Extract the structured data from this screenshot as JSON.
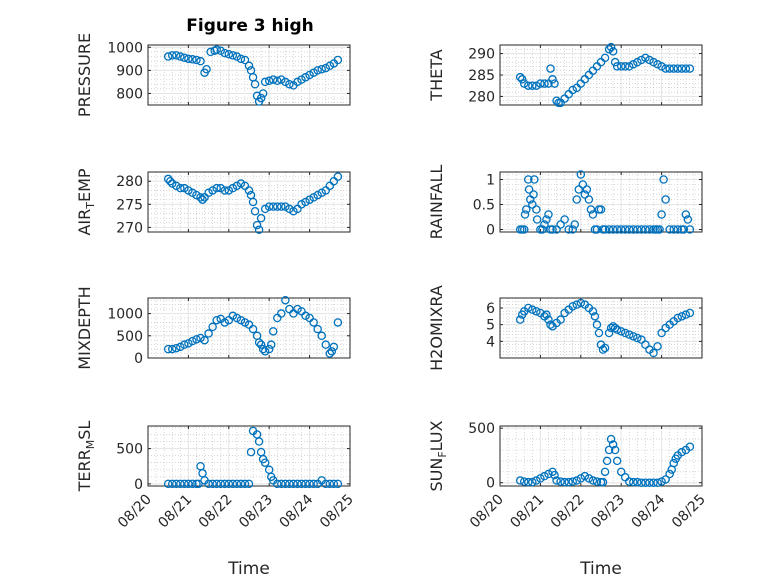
{
  "figure": {
    "title": "Figure 3 high",
    "marker_color": "#0072BD",
    "grid_color": "#e5e5e5",
    "minor_grid_color": "#bdbdbd"
  },
  "chart_data": [
    {
      "type": "scatter",
      "ylabel": "PRESSURE",
      "ylabel_parts": [],
      "x_date_ticks": [
        "08/20",
        "08/21",
        "08/22",
        "08/23",
        "08/24",
        "08/25"
      ],
      "xlim": [
        0,
        5
      ],
      "ylim": [
        750,
        1010
      ],
      "yticks": [
        800,
        900,
        1000
      ],
      "show_xticklabels": false,
      "x": [
        0.5,
        0.6,
        0.7,
        0.8,
        0.9,
        1.0,
        1.1,
        1.2,
        1.3,
        1.4,
        1.45,
        1.55,
        1.65,
        1.7,
        1.8,
        1.9,
        2.0,
        2.1,
        2.2,
        2.3,
        2.4,
        2.5,
        2.55,
        2.6,
        2.65,
        2.7,
        2.75,
        2.8,
        2.85,
        2.9,
        3.0,
        3.1,
        3.2,
        3.3,
        3.4,
        3.5,
        3.6,
        3.7,
        3.8,
        3.9,
        4.0,
        4.1,
        4.2,
        4.3,
        4.4,
        4.5,
        4.6,
        4.7
      ],
      "y": [
        960,
        965,
        965,
        960,
        955,
        950,
        948,
        945,
        940,
        890,
        905,
        980,
        985,
        990,
        985,
        975,
        970,
        965,
        960,
        950,
        945,
        920,
        900,
        870,
        840,
        790,
        765,
        780,
        800,
        850,
        855,
        860,
        855,
        860,
        850,
        840,
        835,
        850,
        860,
        870,
        880,
        890,
        900,
        905,
        910,
        920,
        930,
        945
      ]
    },
    {
      "type": "scatter",
      "ylabel": "THETA",
      "ylabel_parts": [],
      "x_date_ticks": [
        "08/20",
        "08/21",
        "08/22",
        "08/23",
        "08/24",
        "08/25"
      ],
      "xlim": [
        0,
        5
      ],
      "ylim": [
        278,
        292
      ],
      "yticks": [
        280,
        285,
        290
      ],
      "show_xticklabels": false,
      "x": [
        0.5,
        0.55,
        0.6,
        0.7,
        0.8,
        0.9,
        1.0,
        1.1,
        1.2,
        1.25,
        1.3,
        1.35,
        1.4,
        1.45,
        1.5,
        1.6,
        1.7,
        1.8,
        1.9,
        2.0,
        2.1,
        2.2,
        2.3,
        2.4,
        2.5,
        2.6,
        2.7,
        2.75,
        2.8,
        2.85,
        2.9,
        3.0,
        3.1,
        3.2,
        3.3,
        3.4,
        3.5,
        3.6,
        3.7,
        3.8,
        3.9,
        4.0,
        4.1,
        4.2,
        4.3,
        4.4,
        4.5,
        4.6,
        4.7
      ],
      "y": [
        284.5,
        284,
        283,
        282.5,
        282.5,
        282.5,
        283,
        283,
        283,
        286.5,
        284,
        283,
        279,
        278.5,
        278.5,
        279.5,
        280.5,
        281.5,
        282,
        283,
        284,
        285,
        286,
        287,
        288,
        289,
        291,
        291.5,
        290.5,
        288,
        287,
        287,
        287,
        287,
        287.5,
        288,
        288.5,
        289,
        288.5,
        288,
        287.5,
        287,
        286.5,
        286.5,
        286.5,
        286.5,
        286.5,
        286.5,
        286.5
      ]
    },
    {
      "type": "scatter",
      "ylabel": "",
      "ylabel_parts": [
        "AIR",
        "T",
        "EMP"
      ],
      "x_date_ticks": [
        "08/20",
        "08/21",
        "08/22",
        "08/23",
        "08/24",
        "08/25"
      ],
      "xlim": [
        0,
        5
      ],
      "ylim": [
        269,
        282
      ],
      "yticks": [
        270,
        275,
        280
      ],
      "show_xticklabels": false,
      "x": [
        0.5,
        0.55,
        0.6,
        0.7,
        0.8,
        0.9,
        1.0,
        1.1,
        1.2,
        1.3,
        1.35,
        1.4,
        1.5,
        1.6,
        1.7,
        1.8,
        1.9,
        2.0,
        2.1,
        2.2,
        2.3,
        2.4,
        2.5,
        2.55,
        2.6,
        2.65,
        2.7,
        2.75,
        2.8,
        2.9,
        3.0,
        3.1,
        3.2,
        3.3,
        3.4,
        3.5,
        3.6,
        3.7,
        3.8,
        3.9,
        4.0,
        4.1,
        4.2,
        4.3,
        4.4,
        4.5,
        4.6,
        4.7
      ],
      "y": [
        280.5,
        280,
        279.5,
        279,
        278.5,
        278.5,
        278,
        277.5,
        277,
        276.5,
        276,
        276.5,
        277.5,
        278,
        278.5,
        278.5,
        278,
        278,
        278.5,
        279,
        279.5,
        279,
        278,
        277,
        275.5,
        273.5,
        270.5,
        269.5,
        272,
        274,
        274.5,
        274.5,
        274.5,
        274.5,
        274.5,
        274,
        273.5,
        274,
        275,
        275.5,
        276,
        276.5,
        277,
        277.5,
        278,
        279,
        280,
        281
      ]
    },
    {
      "type": "scatter",
      "ylabel": "RAINFALL",
      "ylabel_parts": [],
      "x_date_ticks": [
        "08/20",
        "08/21",
        "08/22",
        "08/23",
        "08/24",
        "08/25"
      ],
      "xlim": [
        0,
        5
      ],
      "ylim": [
        -0.05,
        1.15
      ],
      "yticks": [
        0,
        0.5,
        1
      ],
      "ytick_labels": [
        "0",
        "0.5",
        "1"
      ],
      "show_xticklabels": false,
      "x": [
        0.5,
        0.55,
        0.6,
        0.62,
        0.65,
        0.7,
        0.72,
        0.75,
        0.8,
        0.83,
        0.85,
        0.9,
        0.92,
        1.0,
        1.05,
        1.1,
        1.15,
        1.2,
        1.25,
        1.3,
        1.4,
        1.5,
        1.6,
        1.7,
        1.8,
        1.85,
        1.9,
        1.95,
        2.0,
        2.05,
        2.1,
        2.15,
        2.2,
        2.25,
        2.3,
        2.35,
        2.4,
        2.45,
        2.5,
        2.55,
        2.6,
        2.7,
        2.8,
        2.9,
        3.0,
        3.1,
        3.2,
        3.3,
        3.4,
        3.5,
        3.6,
        3.7,
        3.8,
        3.85,
        3.9,
        3.95,
        4.0,
        4.05,
        4.1,
        4.2,
        4.3,
        4.4,
        4.5,
        4.55,
        4.6,
        4.65,
        4.7
      ],
      "y": [
        0,
        0,
        0,
        0.3,
        0.4,
        1.0,
        0.8,
        0.6,
        0.5,
        0.7,
        1.0,
        0.4,
        0.2,
        0,
        0,
        0.1,
        0.2,
        0.3,
        0,
        0,
        0,
        0.1,
        0.2,
        0,
        0,
        0.1,
        0.6,
        0.8,
        1.1,
        0.9,
        0.7,
        0.8,
        0.6,
        0.4,
        0.3,
        0,
        0,
        0.4,
        0.4,
        0,
        0,
        0,
        0,
        0,
        0,
        0,
        0,
        0,
        0,
        0,
        0,
        0,
        0,
        0,
        0,
        0,
        0.3,
        1.0,
        0.6,
        0,
        0,
        0,
        0,
        0,
        0.3,
        0.2,
        0
      ]
    },
    {
      "type": "scatter",
      "ylabel": "MIXDEPTH",
      "ylabel_parts": [],
      "x_date_ticks": [
        "08/20",
        "08/21",
        "08/22",
        "08/23",
        "08/24",
        "08/25"
      ],
      "xlim": [
        0,
        5
      ],
      "ylim": [
        0,
        1350
      ],
      "yticks": [
        0,
        500,
        1000
      ],
      "show_xticklabels": false,
      "x": [
        0.5,
        0.6,
        0.7,
        0.8,
        0.9,
        1.0,
        1.1,
        1.2,
        1.3,
        1.4,
        1.5,
        1.6,
        1.7,
        1.8,
        1.9,
        2.0,
        2.1,
        2.2,
        2.3,
        2.4,
        2.5,
        2.6,
        2.7,
        2.75,
        2.8,
        2.85,
        2.9,
        3.0,
        3.05,
        3.1,
        3.2,
        3.3,
        3.4,
        3.5,
        3.6,
        3.7,
        3.8,
        3.9,
        4.0,
        4.1,
        4.2,
        4.3,
        4.4,
        4.5,
        4.55,
        4.6,
        4.7
      ],
      "y": [
        200,
        200,
        220,
        250,
        300,
        330,
        380,
        420,
        450,
        400,
        550,
        700,
        850,
        880,
        800,
        850,
        950,
        900,
        850,
        800,
        750,
        650,
        500,
        350,
        300,
        200,
        150,
        200,
        300,
        600,
        900,
        1000,
        1300,
        1100,
        1000,
        1100,
        1050,
        950,
        900,
        800,
        650,
        500,
        300,
        100,
        150,
        250,
        800
      ]
    },
    {
      "type": "scatter",
      "ylabel": "H2OMIXRA",
      "ylabel_parts": [],
      "x_date_ticks": [
        "08/20",
        "08/21",
        "08/22",
        "08/23",
        "08/24",
        "08/25"
      ],
      "xlim": [
        0,
        5
      ],
      "ylim": [
        3.0,
        6.6
      ],
      "yticks": [
        4,
        5,
        6
      ],
      "show_xticklabels": false,
      "x": [
        0.5,
        0.55,
        0.6,
        0.7,
        0.8,
        0.9,
        1.0,
        1.1,
        1.15,
        1.2,
        1.25,
        1.3,
        1.4,
        1.5,
        1.6,
        1.7,
        1.8,
        1.9,
        2.0,
        2.1,
        2.2,
        2.3,
        2.35,
        2.4,
        2.45,
        2.5,
        2.55,
        2.6,
        2.7,
        2.75,
        2.8,
        2.85,
        2.9,
        3.0,
        3.1,
        3.2,
        3.3,
        3.4,
        3.5,
        3.6,
        3.7,
        3.8,
        3.9,
        4.0,
        4.1,
        4.2,
        4.3,
        4.4,
        4.5,
        4.6,
        4.7
      ],
      "y": [
        5.3,
        5.6,
        5.8,
        6.0,
        5.9,
        5.8,
        5.7,
        5.5,
        5.6,
        5.3,
        5.0,
        4.9,
        5.1,
        5.3,
        5.7,
        5.9,
        6.1,
        6.2,
        6.3,
        6.2,
        6.0,
        5.8,
        5.5,
        5.0,
        4.5,
        3.8,
        3.5,
        3.6,
        4.5,
        4.8,
        4.9,
        4.8,
        4.7,
        4.6,
        4.5,
        4.4,
        4.3,
        4.2,
        4.1,
        3.8,
        3.5,
        3.3,
        3.7,
        4.5,
        4.8,
        5.0,
        5.2,
        5.4,
        5.5,
        5.6,
        5.7
      ]
    },
    {
      "type": "scatter",
      "ylabel": "",
      "ylabel_parts": [
        "TERR",
        "M",
        "SL"
      ],
      "x_date_ticks": [
        "08/20",
        "08/21",
        "08/22",
        "08/23",
        "08/24",
        "08/25"
      ],
      "xlim": [
        0,
        5
      ],
      "ylim": [
        -30,
        820
      ],
      "yticks": [
        0,
        500
      ],
      "show_xticklabels": true,
      "xlabel": "Time",
      "x": [
        0.5,
        0.6,
        0.7,
        0.8,
        0.9,
        1.0,
        1.1,
        1.2,
        1.25,
        1.3,
        1.35,
        1.4,
        1.5,
        1.6,
        1.7,
        1.8,
        1.9,
        2.0,
        2.1,
        2.2,
        2.3,
        2.4,
        2.5,
        2.55,
        2.6,
        2.7,
        2.75,
        2.8,
        2.85,
        2.9,
        3.0,
        3.05,
        3.1,
        3.2,
        3.3,
        3.4,
        3.5,
        3.6,
        3.7,
        3.8,
        3.9,
        4.0,
        4.1,
        4.2,
        4.3,
        4.4,
        4.5,
        4.6,
        4.7
      ],
      "y": [
        0,
        0,
        0,
        0,
        0,
        0,
        0,
        0,
        0,
        250,
        150,
        50,
        0,
        0,
        0,
        0,
        0,
        0,
        0,
        0,
        0,
        0,
        0,
        450,
        750,
        700,
        600,
        450,
        350,
        300,
        200,
        100,
        50,
        0,
        0,
        0,
        0,
        0,
        0,
        0,
        0,
        0,
        0,
        0,
        50,
        0,
        0,
        0,
        0
      ]
    },
    {
      "type": "scatter",
      "ylabel": "",
      "ylabel_parts": [
        "SUN",
        "F",
        "LUX"
      ],
      "x_date_ticks": [
        "08/20",
        "08/21",
        "08/22",
        "08/23",
        "08/24",
        "08/25"
      ],
      "xlim": [
        0,
        5
      ],
      "ylim": [
        -30,
        520
      ],
      "yticks": [
        0,
        500
      ],
      "show_xticklabels": true,
      "xlabel": "Time",
      "x": [
        0.5,
        0.6,
        0.7,
        0.8,
        0.9,
        1.0,
        1.1,
        1.2,
        1.3,
        1.35,
        1.4,
        1.5,
        1.6,
        1.7,
        1.8,
        1.9,
        2.0,
        2.1,
        2.2,
        2.3,
        2.4,
        2.5,
        2.55,
        2.6,
        2.65,
        2.7,
        2.75,
        2.8,
        2.85,
        2.9,
        3.0,
        3.1,
        3.2,
        3.3,
        3.4,
        3.5,
        3.6,
        3.7,
        3.8,
        3.9,
        4.0,
        4.1,
        4.2,
        4.25,
        4.3,
        4.35,
        4.4,
        4.5,
        4.6,
        4.7
      ],
      "y": [
        20,
        10,
        5,
        5,
        20,
        40,
        60,
        80,
        100,
        70,
        20,
        10,
        5,
        5,
        10,
        20,
        40,
        60,
        40,
        20,
        10,
        5,
        5,
        100,
        200,
        300,
        400,
        350,
        300,
        200,
        100,
        50,
        10,
        5,
        5,
        0,
        0,
        0,
        0,
        0,
        10,
        30,
        80,
        120,
        180,
        220,
        250,
        280,
        300,
        330
      ]
    }
  ]
}
